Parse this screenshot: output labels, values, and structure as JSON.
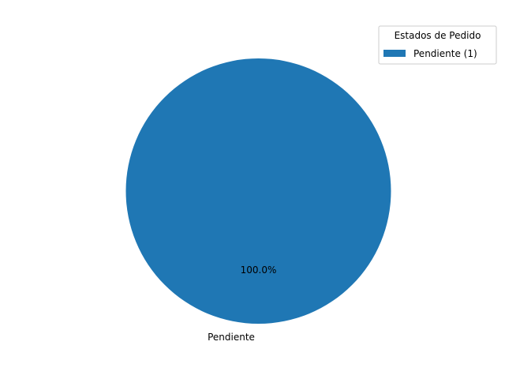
{
  "chart_data": {
    "type": "pie",
    "title": "",
    "categories": [
      "Pendiente"
    ],
    "values": [
      1
    ],
    "slice_labels": [
      "Pendiente"
    ],
    "percent_labels": [
      "100.0%"
    ],
    "colors": [
      "#1f77b4"
    ],
    "legend": {
      "title": "Estados de Pedido",
      "entries": [
        "Pendiente (1)"
      ],
      "placement": "top-right"
    },
    "grid": false
  }
}
